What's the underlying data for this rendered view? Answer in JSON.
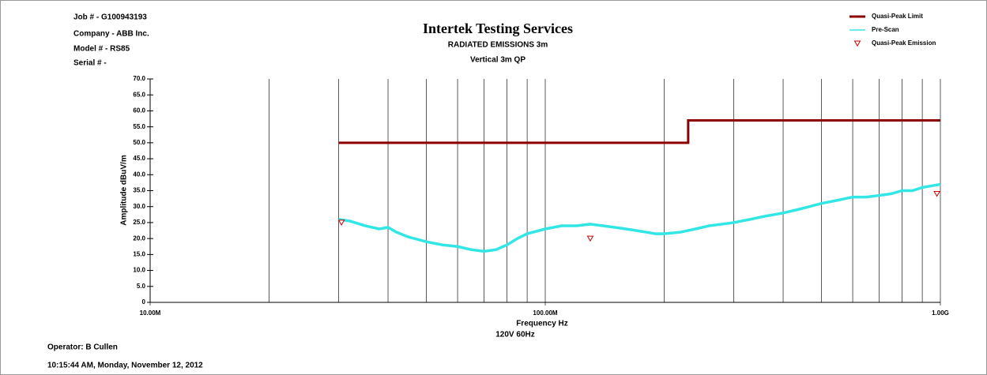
{
  "info": {
    "job": "Job # - G100943193",
    "company": "Company - ABB Inc.",
    "model": "Model # - RS85",
    "serial": "Serial # -",
    "operator": "Operator: B Cullen",
    "timestamp": "10:15:44 AM, Monday, November 12, 2012"
  },
  "chart_data": {
    "type": "line",
    "title": "Intertek Testing Services",
    "subtitle": "RADIATED EMISSIONS 3m",
    "subtitle2": "Vertical 3m QP",
    "xlabel": "Frequency Hz",
    "xnote": "120V 60Hz",
    "ylabel": "Amplitude dBuV/m",
    "xscale": "log",
    "xlim": [
      10000000,
      1000000000
    ],
    "ylim": [
      0,
      70
    ],
    "xticks": [
      {
        "value": 10000000,
        "label": "10.00M"
      },
      {
        "value": 100000000,
        "label": "100.00M"
      },
      {
        "value": 1000000000,
        "label": "1.00G"
      }
    ],
    "xgrid": [
      20000000,
      30000000,
      40000000,
      50000000,
      60000000,
      70000000,
      80000000,
      90000000,
      200000000,
      300000000,
      400000000,
      500000000,
      600000000,
      700000000,
      800000000,
      900000000
    ],
    "yticks": [
      0,
      {
        "value": 5,
        "label": "5.0"
      },
      {
        "value": 10,
        "label": "10.0"
      },
      {
        "value": 15,
        "label": "15.0"
      },
      {
        "value": 20,
        "label": "20.0"
      },
      {
        "value": 25,
        "label": "25.0"
      },
      {
        "value": 30,
        "label": "30.0"
      },
      {
        "value": 35,
        "label": "35.0"
      },
      {
        "value": 40,
        "label": "40.0"
      },
      {
        "value": 45,
        "label": "45.0"
      },
      {
        "value": 50,
        "label": "50.0"
      },
      {
        "value": 55,
        "label": "55.0"
      },
      {
        "value": 60,
        "label": "60.0"
      },
      {
        "value": 65,
        "label": "65.0"
      },
      {
        "value": 70,
        "label": "70.0"
      }
    ],
    "legend": "top-right",
    "series": [
      {
        "name": "Quasi-Peak Limit",
        "color": "#8b0000",
        "style": "line",
        "x": [
          30000000,
          230000000,
          230000000,
          1000000000
        ],
        "values": [
          50,
          50,
          57,
          57
        ]
      },
      {
        "name": "Pre-Scan",
        "color": "#33e6e6",
        "style": "line",
        "x": [
          30000000,
          32000000,
          35000000,
          38000000,
          40000000,
          42000000,
          45000000,
          50000000,
          55000000,
          60000000,
          65000000,
          70000000,
          75000000,
          80000000,
          85000000,
          90000000,
          100000000,
          110000000,
          120000000,
          130000000,
          140000000,
          150000000,
          160000000,
          170000000,
          180000000,
          190000000,
          200000000,
          220000000,
          240000000,
          260000000,
          280000000,
          300000000,
          330000000,
          360000000,
          400000000,
          450000000,
          500000000,
          550000000,
          600000000,
          650000000,
          700000000,
          750000000,
          800000000,
          850000000,
          900000000,
          950000000,
          1000000000
        ],
        "values": [
          26,
          25.5,
          24,
          23,
          23.5,
          22,
          20.5,
          19,
          18,
          17.5,
          16.5,
          16,
          16.5,
          18,
          20,
          21.5,
          23,
          24,
          24,
          24.5,
          24,
          23.5,
          23,
          22.5,
          22,
          21.5,
          21.5,
          22,
          23,
          24,
          24.5,
          25,
          26,
          27,
          28,
          29.5,
          31,
          32,
          33,
          33,
          33.5,
          34,
          35,
          35,
          36,
          36.5,
          37
        ]
      },
      {
        "name": "Quasi-Peak Emission",
        "color": "#cc0000",
        "style": "markers",
        "x": [
          30500000,
          130000000,
          980000000
        ],
        "values": [
          25,
          20,
          34
        ]
      }
    ]
  }
}
